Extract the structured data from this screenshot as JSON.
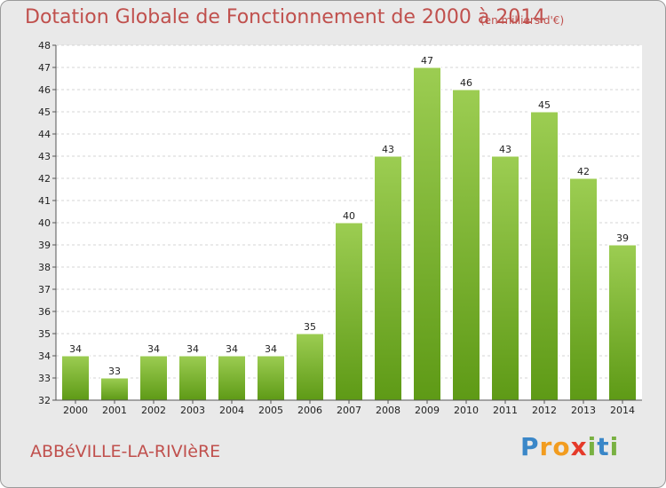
{
  "title": "Dotation Globale de Fonctionnement de 2000 à 2014",
  "subtitle": "(en milliers d'€)",
  "commune": "ABBéVILLE-LA-RIVIèRE",
  "logo": {
    "letters": [
      "P",
      "r",
      "o",
      "x",
      "i",
      "t",
      "i"
    ],
    "colors": [
      "#3a87c8",
      "#f29c1f",
      "#f29c1f",
      "#e53a2a",
      "#79b142",
      "#3a87c8",
      "#79b142"
    ]
  },
  "colors": {
    "bar_top": "#9ccd52",
    "bar_bottom": "#5e9a16",
    "title": "#c0504d"
  },
  "chart_data": {
    "type": "bar",
    "title": "Dotation Globale de Fonctionnement de 2000 à 2014",
    "subtitle": "(en milliers d'€)",
    "categories": [
      "2000",
      "2001",
      "2002",
      "2003",
      "2004",
      "2005",
      "2006",
      "2007",
      "2008",
      "2009",
      "2010",
      "2011",
      "2012",
      "2013",
      "2014"
    ],
    "values": [
      34,
      33,
      34,
      34,
      34,
      34,
      35,
      40,
      43,
      47,
      46,
      43,
      45,
      42,
      39
    ],
    "ylim": [
      32,
      48
    ],
    "yticks": [
      32,
      33,
      34,
      35,
      36,
      37,
      38,
      39,
      40,
      41,
      42,
      43,
      44,
      45,
      46,
      47,
      48
    ],
    "grid": true,
    "xlabel": "",
    "ylabel": ""
  }
}
